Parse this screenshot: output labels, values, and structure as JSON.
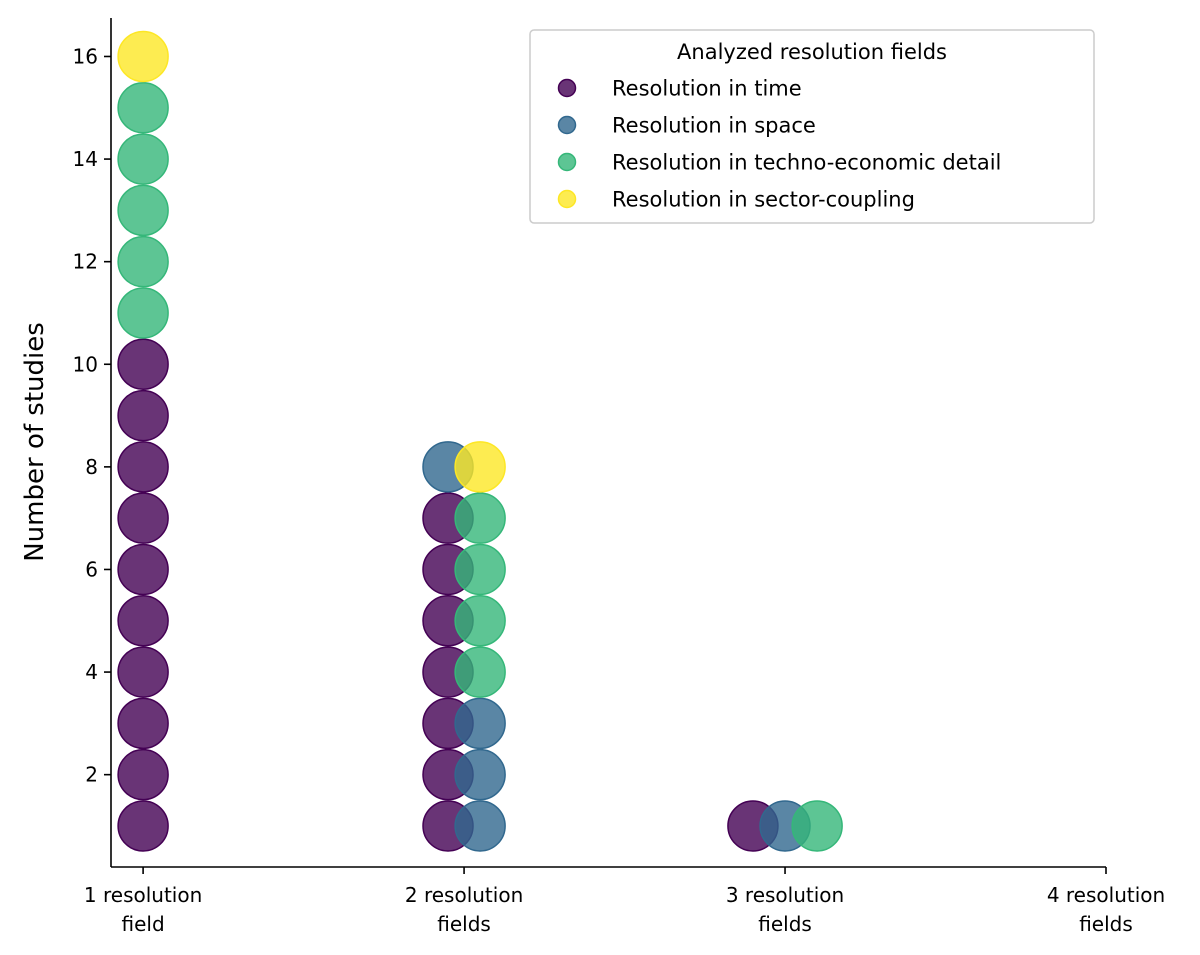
{
  "chart_data": {
    "type": "scatter",
    "title": "",
    "xlabel": "",
    "ylabel": "Number of studies",
    "ylim": [
      0.2,
      16.75
    ],
    "xlim": [
      0.9,
      4.0
    ],
    "categories": [
      {
        "line1": "1 resolution",
        "line2": "field"
      },
      {
        "line1": "2 resolution",
        "line2": "fields"
      },
      {
        "line1": "3 resolution",
        "line2": "fields"
      },
      {
        "line1": "4 resolution",
        "line2": "fields"
      }
    ],
    "yticks": [
      2,
      4,
      6,
      8,
      10,
      12,
      14,
      16
    ],
    "grid": false,
    "legend": {
      "title": "Analyzed resolution fields",
      "position": "top-right"
    },
    "series": [
      {
        "name": "Resolution in time",
        "color": "#440154",
        "points": [
          {
            "x": 1,
            "y": 1
          },
          {
            "x": 1,
            "y": 2
          },
          {
            "x": 1,
            "y": 3
          },
          {
            "x": 1,
            "y": 4
          },
          {
            "x": 1,
            "y": 5
          },
          {
            "x": 1,
            "y": 6
          },
          {
            "x": 1,
            "y": 7
          },
          {
            "x": 1,
            "y": 8
          },
          {
            "x": 1,
            "y": 9
          },
          {
            "x": 1,
            "y": 10
          },
          {
            "x": 1.95,
            "y": 1
          },
          {
            "x": 1.95,
            "y": 2
          },
          {
            "x": 1.95,
            "y": 3
          },
          {
            "x": 1.95,
            "y": 4
          },
          {
            "x": 1.95,
            "y": 5
          },
          {
            "x": 1.95,
            "y": 6
          },
          {
            "x": 1.95,
            "y": 7
          },
          {
            "x": 2.9,
            "y": 1
          }
        ]
      },
      {
        "name": "Resolution in space",
        "color": "#31688e",
        "points": [
          {
            "x": 1.95,
            "y": 8
          },
          {
            "x": 2.05,
            "y": 1
          },
          {
            "x": 2.05,
            "y": 2
          },
          {
            "x": 2.05,
            "y": 3
          },
          {
            "x": 3.0,
            "y": 1
          }
        ]
      },
      {
        "name": "Resolution in techno-economic detail",
        "color": "#35b779",
        "points": [
          {
            "x": 1,
            "y": 11
          },
          {
            "x": 1,
            "y": 12
          },
          {
            "x": 1,
            "y": 13
          },
          {
            "x": 1,
            "y": 14
          },
          {
            "x": 1,
            "y": 15
          },
          {
            "x": 2.05,
            "y": 4
          },
          {
            "x": 2.05,
            "y": 5
          },
          {
            "x": 2.05,
            "y": 6
          },
          {
            "x": 2.05,
            "y": 7
          },
          {
            "x": 3.1,
            "y": 1
          }
        ]
      },
      {
        "name": "Resolution in sector-coupling",
        "color": "#fde725",
        "points": [
          {
            "x": 1,
            "y": 16
          },
          {
            "x": 2.05,
            "y": 8
          }
        ]
      }
    ]
  }
}
